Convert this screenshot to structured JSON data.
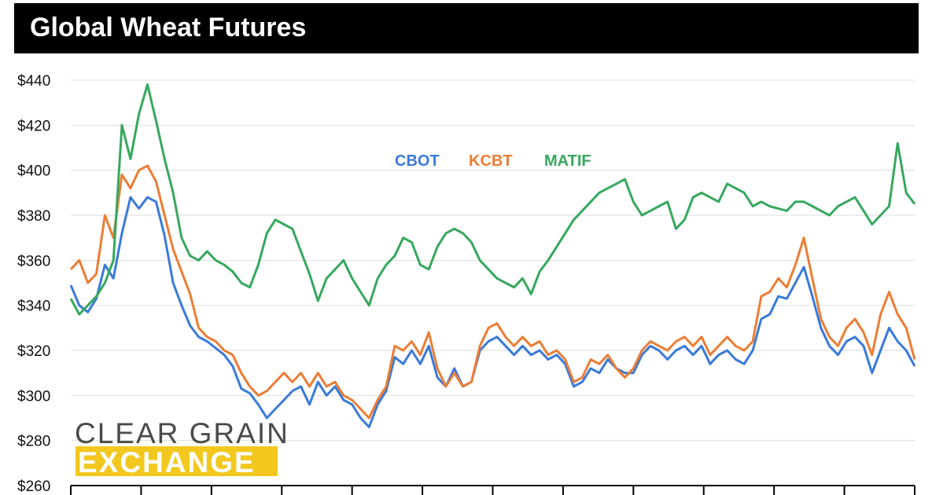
{
  "header": {
    "title": "Global Wheat Futures"
  },
  "logo": {
    "line1": "CLEAR GRAIN",
    "line2": "EXCHANGE",
    "highlight_color": "#f2c81e"
  },
  "chart_data": {
    "type": "line",
    "title": "Global Wheat Futures",
    "xlabel": "",
    "ylabel": "",
    "ylim": [
      260,
      440
    ],
    "yticks": [
      260,
      280,
      300,
      320,
      340,
      360,
      380,
      400,
      420,
      440
    ],
    "ytick_labels": [
      "$260",
      "$280",
      "$300",
      "$320",
      "$340",
      "$360",
      "$380",
      "$400",
      "$420",
      "$440"
    ],
    "grid": true,
    "legend_position": "top-center",
    "n_points": 100,
    "series": [
      {
        "name": "CBOT",
        "color": "#3a7ad9",
        "values": [
          349,
          340,
          337,
          343,
          358,
          352,
          372,
          388,
          383,
          388,
          386,
          371,
          350,
          340,
          331,
          326,
          324,
          321,
          318,
          313,
          303,
          301,
          296,
          290,
          294,
          298,
          302,
          304,
          296,
          306,
          300,
          304,
          298,
          296,
          290,
          286,
          296,
          302,
          317,
          314,
          320,
          314,
          322,
          308,
          304,
          312,
          304,
          306,
          320,
          324,
          326,
          322,
          318,
          322,
          318,
          320,
          316,
          318,
          314,
          304,
          306,
          312,
          310,
          316,
          312,
          310,
          310,
          318,
          322,
          320,
          316,
          320,
          322,
          318,
          322,
          314,
          318,
          320,
          316,
          314,
          320,
          334,
          336,
          344,
          343,
          350,
          357,
          344,
          330,
          322,
          318,
          324,
          326,
          322,
          310,
          320,
          330,
          324,
          320,
          313
        ]
      },
      {
        "name": "KCBT",
        "color": "#eb7d35",
        "values": [
          356,
          360,
          350,
          354,
          380,
          370,
          398,
          392,
          400,
          402,
          395,
          380,
          365,
          355,
          345,
          330,
          326,
          324,
          320,
          318,
          310,
          304,
          300,
          302,
          306,
          310,
          306,
          310,
          304,
          310,
          304,
          306,
          300,
          298,
          294,
          290,
          298,
          304,
          322,
          320,
          324,
          318,
          328,
          312,
          304,
          310,
          304,
          306,
          322,
          330,
          332,
          326,
          322,
          326,
          322,
          324,
          318,
          320,
          316,
          306,
          308,
          316,
          314,
          318,
          312,
          308,
          312,
          320,
          324,
          322,
          320,
          324,
          326,
          322,
          326,
          318,
          322,
          326,
          322,
          320,
          324,
          344,
          346,
          352,
          348,
          358,
          370,
          352,
          334,
          326,
          322,
          330,
          334,
          328,
          318,
          336,
          346,
          336,
          330,
          316
        ]
      },
      {
        "name": "MATIF",
        "color": "#36a85d",
        "values": [
          343,
          336,
          340,
          344,
          350,
          360,
          420,
          405,
          425,
          438,
          422,
          405,
          390,
          370,
          362,
          360,
          364,
          360,
          358,
          355,
          350,
          348,
          358,
          372,
          378,
          376,
          374,
          364,
          354,
          342,
          352,
          356,
          360,
          352,
          346,
          340,
          352,
          358,
          362,
          370,
          368,
          358,
          356,
          366,
          372,
          374,
          372,
          368,
          360,
          356,
          352,
          350,
          348,
          352,
          345,
          355,
          360,
          366,
          372,
          378,
          382,
          386,
          390,
          392,
          394,
          396,
          386,
          380,
          382,
          384,
          386,
          374,
          378,
          388,
          390,
          388,
          386,
          394,
          392,
          390,
          384,
          386,
          384,
          383,
          382,
          386,
          386,
          384,
          382,
          380,
          384,
          386,
          388,
          382,
          376,
          380,
          384,
          412,
          390,
          385
        ]
      }
    ]
  }
}
